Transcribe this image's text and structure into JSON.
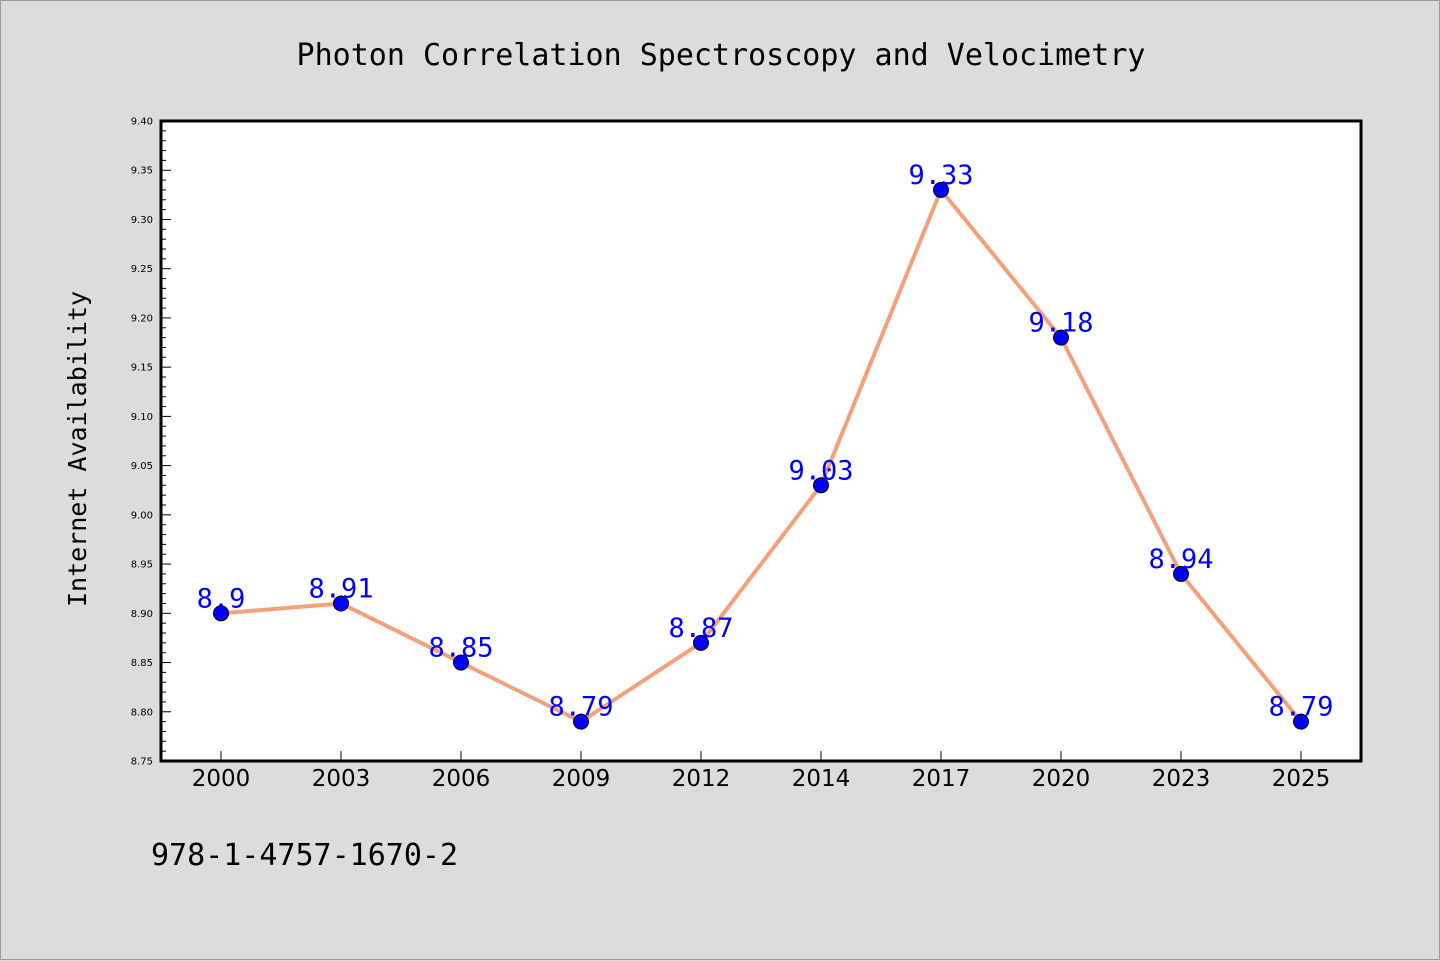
{
  "chart_data": {
    "type": "line",
    "title": "Photon Correlation Spectroscopy and Velocimetry",
    "xlabel": "",
    "ylabel": "Internet Availability",
    "categories": [
      "2000",
      "2003",
      "2006",
      "2009",
      "2012",
      "2014",
      "2017",
      "2020",
      "2023",
      "2025"
    ],
    "series": [
      {
        "values": [
          8.9,
          8.91,
          8.85,
          8.79,
          8.87,
          9.03,
          9.33,
          9.18,
          8.94,
          8.79
        ],
        "value_labels": [
          "8.9",
          "8.91",
          "8.85",
          "8.79",
          "8.87",
          "9.03",
          "9.33",
          "9.18",
          "8.94",
          "8.79"
        ],
        "line_color": "#f4a07a",
        "marker_color": "#0000ff",
        "label_color": "#0000ff"
      }
    ],
    "ylim": [
      8.75,
      9.4
    ],
    "yticks": [
      "8.75",
      "8.80",
      "8.85",
      "8.90",
      "8.95",
      "9.00",
      "9.05",
      "9.10",
      "9.15",
      "9.20",
      "9.25",
      "9.30",
      "9.35",
      "9.40"
    ],
    "grid": false,
    "legend": "none"
  },
  "footer": {
    "code": "978-1-4757-1670-2"
  },
  "colors": {
    "page_background": "#dcdcdc",
    "plot_background": "#ffffff"
  }
}
